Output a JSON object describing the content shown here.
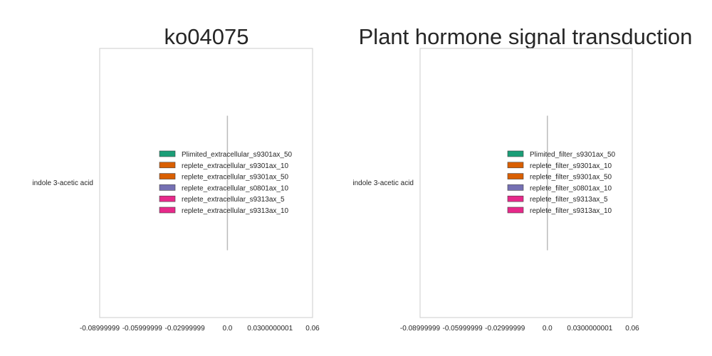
{
  "chart_data": [
    {
      "type": "bar",
      "orientation": "horizontal",
      "title": "ko04075",
      "categories": [
        "indole 3-acetic acid"
      ],
      "xlim": [
        -0.09,
        0.06
      ],
      "x_ticks": [
        -0.09,
        -0.06,
        -0.03,
        0.0,
        0.03,
        0.06
      ],
      "x_tick_labels": [
        "-0.08999999",
        "-0.05999999",
        "-0.02999999",
        "0.0",
        "0.0300000001",
        "0.06"
      ],
      "grid": false,
      "legend_position": "center",
      "series": [
        {
          "name": "Plimited_extracellular_s9301ax_50",
          "color": "#1b9e77",
          "values": [
            0
          ]
        },
        {
          "name": "replete_extracellular_s9301ax_10",
          "color": "#d95f02",
          "values": [
            0
          ]
        },
        {
          "name": "replete_extracellular_s9301ax_50",
          "color": "#d95f02",
          "values": [
            0
          ]
        },
        {
          "name": "replete_extracellular_s0801ax_10",
          "color": "#7570b3",
          "values": [
            0
          ]
        },
        {
          "name": "replete_extracellular_s9313ax_5",
          "color": "#e7298a",
          "values": [
            0
          ]
        },
        {
          "name": "replete_extracellular_s9313ax_10",
          "color": "#e7298a",
          "values": [
            0
          ]
        }
      ]
    },
    {
      "type": "bar",
      "orientation": "horizontal",
      "title": "Plant hormone signal transduction",
      "categories": [
        "indole 3-acetic acid"
      ],
      "xlim": [
        -0.09,
        0.06
      ],
      "x_ticks": [
        -0.09,
        -0.06,
        -0.03,
        0.0,
        0.03,
        0.06
      ],
      "x_tick_labels": [
        "-0.08999999",
        "-0.05999999",
        "-0.02999999",
        "0.0",
        "0.0300000001",
        "0.06"
      ],
      "grid": false,
      "legend_position": "center",
      "series": [
        {
          "name": "Plimited_filter_s9301ax_50",
          "color": "#1b9e77",
          "values": [
            0
          ]
        },
        {
          "name": "replete_filter_s9301ax_10",
          "color": "#d95f02",
          "values": [
            0
          ]
        },
        {
          "name": "replete_filter_s9301ax_50",
          "color": "#d95f02",
          "values": [
            0
          ]
        },
        {
          "name": "replete_filter_s0801ax_10",
          "color": "#7570b3",
          "values": [
            0
          ]
        },
        {
          "name": "replete_filter_s9313ax_5",
          "color": "#e7298a",
          "values": [
            0
          ]
        },
        {
          "name": "replete_filter_s9313ax_10",
          "color": "#e7298a",
          "values": [
            0
          ]
        }
      ]
    }
  ]
}
